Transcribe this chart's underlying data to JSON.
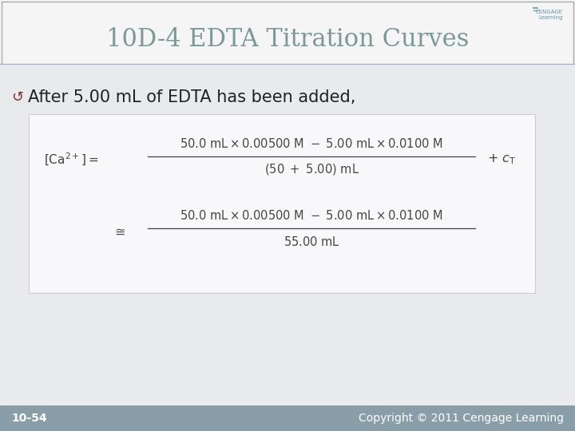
{
  "title": "10D-4 EDTA Titration Curves",
  "title_color": "#7a9a9a",
  "title_fontsize": 22,
  "slide_bg": "#e8eaec",
  "title_bg": "#f5f5f5",
  "content_bg": "#e8eaec",
  "bullet_text": "After 5.00 mL of EDTA has been added,",
  "bullet_icon_color": "#8b3030",
  "bullet_fontsize": 15,
  "formula_box_color": "#f8f8fa",
  "formula_box_edge": "#cccccc",
  "footer_bg": "#8a9eaa",
  "footer_text_left": "10-54",
  "footer_text_right": "Copyright © 2011 Cengage Learning",
  "footer_fontsize": 10,
  "cengage_color": "#5a9aaa",
  "formula_color": "#444444",
  "formula_fontsize": 10.5
}
